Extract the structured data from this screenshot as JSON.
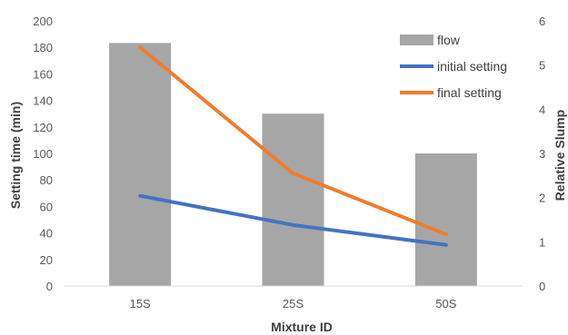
{
  "chart_data": {
    "type": "bar+line",
    "title": "",
    "categories": [
      "15S",
      "25S",
      "50S"
    ],
    "xlabel": "Mixture ID",
    "ylabel_left": "Setting time (min)",
    "ylabel_right": "Relative Slump",
    "ylim_left": [
      0,
      200
    ],
    "ylim_right": [
      0,
      6
    ],
    "yticks_left": [
      "0",
      "20",
      "40",
      "60",
      "80",
      "100",
      "120",
      "140",
      "160",
      "180",
      "200"
    ],
    "yticks_right": [
      "0",
      "1",
      "2",
      "3",
      "4",
      "5",
      "6"
    ],
    "grid": false,
    "legend_position": "top-right",
    "series": [
      {
        "name": "flow",
        "kind": "bar",
        "axis": "right",
        "color": "#a6a6a6",
        "values": [
          5.5,
          3.9,
          3.0
        ]
      },
      {
        "name": "initial setting",
        "kind": "line",
        "axis": "left",
        "color": "#4472c4",
        "values": [
          68,
          46,
          31
        ]
      },
      {
        "name": "final setting",
        "kind": "line",
        "axis": "left",
        "color": "#ed7d31",
        "values": [
          180,
          85,
          39
        ]
      }
    ]
  }
}
